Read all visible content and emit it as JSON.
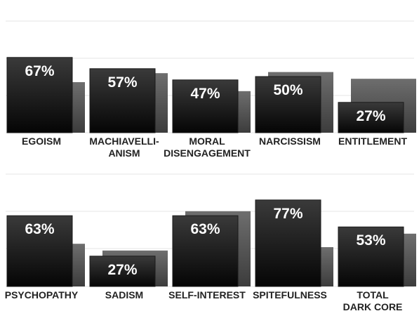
{
  "chart_data": {
    "type": "bar",
    "grid": true,
    "panels": [
      {
        "categories": [
          [
            "EGOISM"
          ],
          [
            "MACHIAVELLI-",
            "ANISM"
          ],
          [
            "MORAL",
            "DISENGAGEMENT"
          ],
          [
            "NARCISSISM"
          ],
          [
            "ENTITLEMENT"
          ]
        ],
        "values": [
          67,
          57,
          47,
          50,
          27
        ],
        "labels": [
          "67%",
          "57%",
          "47%",
          "50%",
          "27%"
        ],
        "secondary_values": [
          45,
          53,
          37,
          54,
          48
        ]
      },
      {
        "categories": [
          [
            "PSYCHOPATHY"
          ],
          [
            "SADISM"
          ],
          [
            "SELF-INTEREST"
          ],
          [
            "SPITEFULNESS"
          ],
          [
            "TOTAL",
            "DARK CORE"
          ]
        ],
        "values": [
          63,
          27,
          63,
          77,
          53
        ],
        "labels": [
          "63%",
          "27%",
          "63%",
          "77%",
          "53%"
        ],
        "secondary_values": [
          38,
          32,
          67,
          35,
          47
        ]
      }
    ],
    "colors": {
      "primary_top": "#3a3a3a",
      "primary_bottom": "#050505",
      "secondary_top": "#6e6e6e",
      "secondary_bottom": "#3c3c3c",
      "grid": "#e6e6e6"
    }
  }
}
